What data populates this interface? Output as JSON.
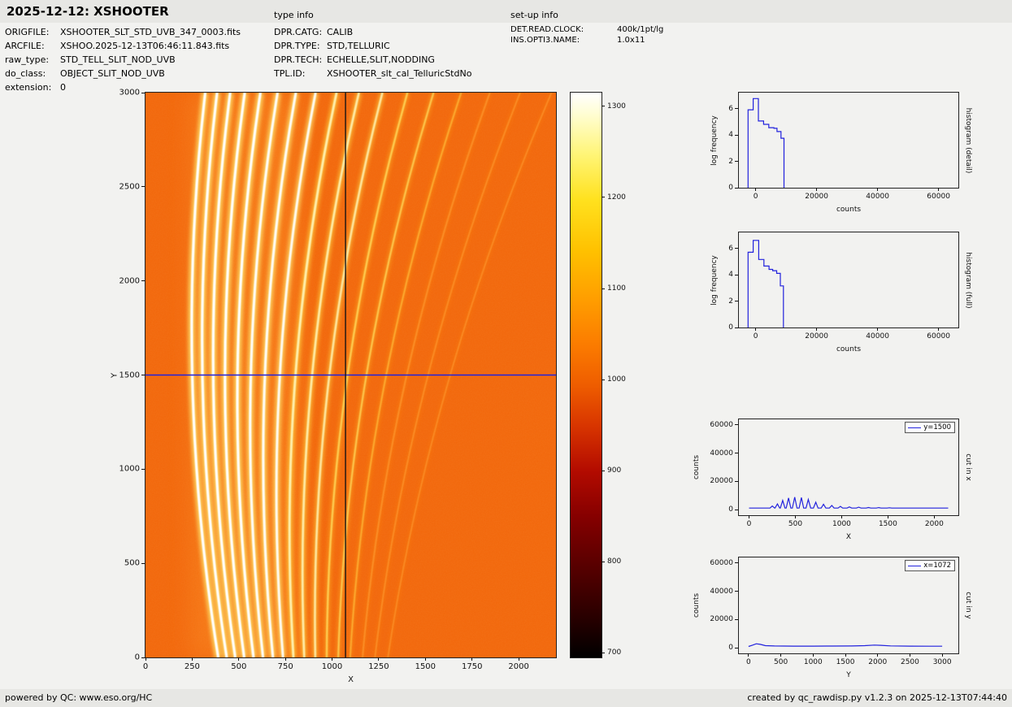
{
  "header": {
    "title": "2025-12-12: XSHOOTER",
    "type_info_heading": "type info",
    "setup_info_heading": "set-up info",
    "file_info": [
      {
        "label": "ORIGFILE:",
        "value": "XSHOOTER_SLT_STD_UVB_347_0003.fits"
      },
      {
        "label": "ARCFILE:",
        "value": "XSHOO.2025-12-13T06:46:11.843.fits"
      },
      {
        "label": "raw_type:",
        "value": "STD_TELL_SLIT_NOD_UVB"
      },
      {
        "label": "do_class:",
        "value": "OBJECT_SLIT_NOD_UVB"
      },
      {
        "label": "extension:",
        "value": "0"
      }
    ],
    "type_info": [
      {
        "label": "DPR.CATG:",
        "value": "CALIB"
      },
      {
        "label": "DPR.TYPE:",
        "value": "STD,TELLURIC"
      },
      {
        "label": "DPR.TECH:",
        "value": "ECHELLE,SLIT,NODDING"
      },
      {
        "label": "TPL.ID:",
        "value": "XSHOOTER_slt_cal_TelluricStdNo"
      }
    ],
    "setup_info": [
      {
        "label": "DET.READ.CLOCK:",
        "value": "400k/1pt/lg"
      },
      {
        "label": "INS.OPTI3.NAME:",
        "value": "1.0x11"
      }
    ]
  },
  "footer": {
    "left": "powered by QC: www.eso.org/HC",
    "right": "created by qc_rawdisp.py v1.2.3 on 2025-12-13T07:44:40"
  },
  "chart_data": [
    {
      "type": "heatmap",
      "name": "raw echelle frame",
      "xlabel": "X",
      "ylabel": "Y",
      "xlim": [
        0,
        2200
      ],
      "ylim": [
        0,
        3000
      ],
      "xticks": [
        0,
        250,
        500,
        750,
        1000,
        1250,
        1500,
        1750,
        2000
      ],
      "yticks": [
        0,
        500,
        1000,
        1500,
        2000,
        2500,
        3000
      ],
      "image_background": "#f2660a",
      "background_counts": 1000,
      "crosshair": {
        "x": 1072,
        "y": 1500,
        "x_color": "#151515",
        "y_color": "#2222dd"
      },
      "orders": [
        {
          "xb": 390,
          "xt": 320,
          "i": 1.0
        },
        {
          "xb": 435,
          "xt": 384,
          "i": 1.0
        },
        {
          "xb": 481,
          "xt": 454,
          "i": 1.0
        },
        {
          "xb": 529,
          "xt": 532,
          "i": 1.0
        },
        {
          "xb": 579,
          "xt": 616,
          "i": 1.0
        },
        {
          "xb": 630,
          "xt": 708,
          "i": 0.97
        },
        {
          "xb": 683,
          "xt": 806,
          "i": 0.93
        },
        {
          "xb": 737,
          "xt": 912,
          "i": 0.88
        },
        {
          "xb": 793,
          "xt": 1024,
          "i": 0.8
        },
        {
          "xb": 851,
          "xt": 1144,
          "i": 0.72
        },
        {
          "xb": 910,
          "xt": 1270,
          "i": 0.62
        },
        {
          "xb": 971,
          "xt": 1404,
          "i": 0.52
        },
        {
          "xb": 1033,
          "xt": 1544,
          "i": 0.42
        },
        {
          "xb": 1097,
          "xt": 1692,
          "i": 0.32
        },
        {
          "xb": 1163,
          "xt": 1846,
          "i": 0.24
        },
        {
          "xb": 1230,
          "xt": 2008,
          "i": 0.17
        },
        {
          "xb": 1299,
          "xt": 2176,
          "i": 0.11
        }
      ]
    },
    {
      "type": "colorbar",
      "name": "colorbar",
      "colormap": "hot",
      "range": [
        695,
        1315
      ],
      "ticks": [
        700,
        800,
        900,
        1000,
        1100,
        1200,
        1300
      ]
    },
    {
      "type": "line",
      "name": "histogram (detail)",
      "right_label": "histogram (detail)",
      "xlabel": "counts",
      "ylabel": "log frequency",
      "xlim": [
        -5500,
        66500
      ],
      "ylim": [
        0,
        7.2
      ],
      "xticks": [
        0,
        20000,
        40000,
        60000
      ],
      "yticks": [
        0,
        2,
        4,
        6
      ],
      "color": "#2222dd",
      "points": [
        [
          -2500,
          0
        ],
        [
          -2500,
          5.9
        ],
        [
          -800,
          5.9
        ],
        [
          -800,
          6.75
        ],
        [
          900,
          6.75
        ],
        [
          900,
          5.05
        ],
        [
          2600,
          5.05
        ],
        [
          2600,
          4.8
        ],
        [
          4300,
          4.8
        ],
        [
          4300,
          4.55
        ],
        [
          6000,
          4.55
        ],
        [
          6000,
          4.5
        ],
        [
          7000,
          4.5
        ],
        [
          7000,
          4.25
        ],
        [
          8300,
          4.25
        ],
        [
          8300,
          3.75
        ],
        [
          9300,
          3.75
        ],
        [
          9300,
          0
        ]
      ]
    },
    {
      "type": "line",
      "name": "histogram (full)",
      "right_label": "histogram (full)",
      "xlabel": "counts",
      "ylabel": "log frequency",
      "xlim": [
        -5500,
        66500
      ],
      "ylim": [
        0,
        7.2
      ],
      "xticks": [
        0,
        20000,
        40000,
        60000
      ],
      "yticks": [
        0,
        2,
        4,
        6
      ],
      "color": "#2222dd",
      "points": [
        [
          -2500,
          0
        ],
        [
          -2500,
          5.7
        ],
        [
          -800,
          5.7
        ],
        [
          -800,
          6.6
        ],
        [
          1000,
          6.6
        ],
        [
          1000,
          5.15
        ],
        [
          2700,
          5.15
        ],
        [
          2700,
          4.65
        ],
        [
          4400,
          4.65
        ],
        [
          4400,
          4.4
        ],
        [
          5600,
          4.4
        ],
        [
          5600,
          4.3
        ],
        [
          6900,
          4.3
        ],
        [
          6900,
          4.1
        ],
        [
          8100,
          4.1
        ],
        [
          8100,
          3.15
        ],
        [
          9100,
          3.15
        ],
        [
          9100,
          0
        ]
      ]
    },
    {
      "type": "line",
      "name": "cut in x",
      "right_label": "cut in x",
      "legend": "y=1500",
      "xlabel": "X",
      "ylabel": "counts",
      "xlim": [
        -110,
        2260
      ],
      "ylim": [
        -4000,
        64000
      ],
      "xticks": [
        0,
        500,
        1000,
        1500,
        2000
      ],
      "yticks": [
        0,
        20000,
        40000,
        60000
      ],
      "color": "#2222dd",
      "points": [
        [
          0,
          1100
        ],
        [
          226,
          1100
        ],
        [
          251,
          2500
        ],
        [
          276,
          1100
        ],
        [
          281,
          1100
        ],
        [
          306,
          4000
        ],
        [
          331,
          1100
        ],
        [
          338,
          1100
        ],
        [
          363,
          6500
        ],
        [
          388,
          1100
        ],
        [
          401,
          1100
        ],
        [
          426,
          8200
        ],
        [
          451,
          1100
        ],
        [
          468,
          1100
        ],
        [
          493,
          8800
        ],
        [
          518,
          1100
        ],
        [
          540,
          1100
        ],
        [
          565,
          8500
        ],
        [
          590,
          1100
        ],
        [
          615,
          1100
        ],
        [
          640,
          7200
        ],
        [
          665,
          1100
        ],
        [
          695,
          1100
        ],
        [
          720,
          5200
        ],
        [
          745,
          1100
        ],
        [
          779,
          1100
        ],
        [
          804,
          3800
        ],
        [
          829,
          1100
        ],
        [
          868,
          1100
        ],
        [
          893,
          2900
        ],
        [
          918,
          1100
        ],
        [
          961,
          1100
        ],
        [
          986,
          2300
        ],
        [
          1011,
          1100
        ],
        [
          1058,
          1100
        ],
        [
          1083,
          1900
        ],
        [
          1108,
          1100
        ],
        [
          1159,
          1100
        ],
        [
          1184,
          1700
        ],
        [
          1209,
          1100
        ],
        [
          1265,
          1100
        ],
        [
          1290,
          1500
        ],
        [
          1315,
          1100
        ],
        [
          1375,
          1100
        ],
        [
          1400,
          1400
        ],
        [
          1425,
          1100
        ],
        [
          1490,
          1100
        ],
        [
          1515,
          1300
        ],
        [
          1540,
          1100
        ],
        [
          2150,
          1100
        ]
      ]
    },
    {
      "type": "line",
      "name": "cut in y",
      "right_label": "cut in y",
      "legend": "x=1072",
      "xlabel": "Y",
      "ylabel": "counts",
      "xlim": [
        -150,
        3250
      ],
      "ylim": [
        -4000,
        64000
      ],
      "xticks": [
        0,
        500,
        1000,
        1500,
        2000,
        2500,
        3000
      ],
      "yticks": [
        0,
        20000,
        40000,
        60000
      ],
      "color": "#2222dd",
      "points": [
        [
          0,
          900
        ],
        [
          60,
          1800
        ],
        [
          120,
          2800
        ],
        [
          180,
          2400
        ],
        [
          260,
          1500
        ],
        [
          400,
          1250
        ],
        [
          700,
          1150
        ],
        [
          1000,
          1150
        ],
        [
          1300,
          1200
        ],
        [
          1600,
          1250
        ],
        [
          1800,
          1500
        ],
        [
          1950,
          1900
        ],
        [
          2050,
          1700
        ],
        [
          2200,
          1300
        ],
        [
          2500,
          1150
        ],
        [
          2800,
          1100
        ],
        [
          3000,
          1100
        ]
      ]
    }
  ]
}
